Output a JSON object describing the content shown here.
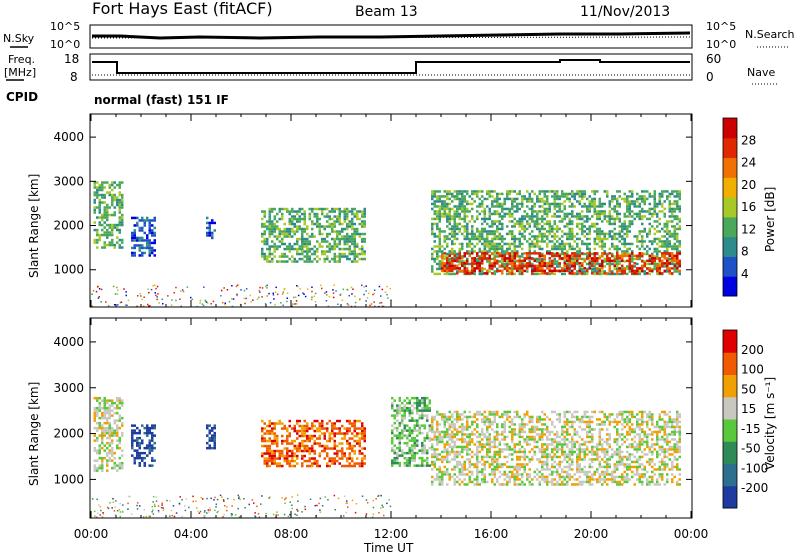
{
  "header": {
    "title": "Fort Hays East (fitACF)",
    "beam": "Beam 13",
    "date": "11/Nov/2013"
  },
  "noise_panel": {
    "left_label": "N.Sky",
    "right_label": "N.Search",
    "left_ticks": [
      "10^5",
      "10^0"
    ],
    "right_ticks": [
      "10^5",
      "10^0"
    ]
  },
  "freq_panel": {
    "left_label_1": "Freq.",
    "left_label_2": "[MHz]",
    "right_label": "Nave",
    "left_ticks": [
      "18",
      "8"
    ],
    "right_ticks": [
      "60",
      "0"
    ]
  },
  "cpid": {
    "label": "CPID",
    "value": "normal (fast) 151 IF"
  },
  "x_axis": {
    "label": "Time UT",
    "ticks": [
      "00:00",
      "04:00",
      "08:00",
      "12:00",
      "16:00",
      "20:00",
      "00:00"
    ]
  },
  "chart_data": [
    {
      "type": "heatmap",
      "name": "power",
      "ylabel": "Slant Range [km]",
      "yticks": [
        1000,
        2000,
        3000,
        4000
      ],
      "ylim": [
        180,
        4500
      ],
      "xlim_hours": [
        0,
        24
      ],
      "colorbar_label": "Power [dB]",
      "colorbar_ticks": [
        "28",
        "24",
        "20",
        "16",
        "12",
        "8",
        "4"
      ],
      "colors": [
        "#0000e0",
        "#1e50c8",
        "#2e8b8b",
        "#4aa85a",
        "#a8c828",
        "#f0b000",
        "#f07000",
        "#e02800",
        "#cc0000"
      ],
      "regions": [
        {
          "t0": 0.1,
          "t1": 1.3,
          "r0": 1500,
          "r1": 3000,
          "level": 3
        },
        {
          "t0": 1.6,
          "t1": 2.6,
          "r0": 1300,
          "r1": 2200,
          "level": 1
        },
        {
          "t0": 4.6,
          "t1": 5.0,
          "r0": 1700,
          "r1": 2200,
          "level": 1
        },
        {
          "t0": 6.8,
          "t1": 11.0,
          "r0": 1200,
          "r1": 2400,
          "level": 3
        },
        {
          "t0": 13.6,
          "t1": 23.6,
          "r0": 900,
          "r1": 2800,
          "level": 3
        },
        {
          "t0": 14.0,
          "t1": 23.6,
          "r0": 900,
          "r1": 1400,
          "level": 7
        }
      ]
    },
    {
      "type": "heatmap",
      "name": "velocity",
      "ylabel": "Slant Range [km]",
      "yticks": [
        1000,
        2000,
        3000,
        4000
      ],
      "ylim": [
        180,
        4500
      ],
      "xlim_hours": [
        0,
        24
      ],
      "colorbar_label": "Velocity [m s⁻¹]",
      "colorbar_ticks": [
        "200",
        "100",
        "50",
        "15",
        "-15",
        "-50",
        "-100",
        "-200"
      ],
      "colors": [
        "#1e3ca0",
        "#2e6e8e",
        "#2e8b57",
        "#5ac83c",
        "#c8c8c0",
        "#f0a000",
        "#f05a00",
        "#e00000"
      ],
      "regions": [
        {
          "t0": 0.1,
          "t1": 1.3,
          "r0": 1200,
          "r1": 2800,
          "level": 4
        },
        {
          "t0": 1.6,
          "t1": 2.6,
          "r0": 1300,
          "r1": 2200,
          "level": 0
        },
        {
          "t0": 4.6,
          "t1": 5.0,
          "r0": 1700,
          "r1": 2200,
          "level": 0
        },
        {
          "t0": 6.8,
          "t1": 11.0,
          "r0": 1300,
          "r1": 2300,
          "level": 6
        },
        {
          "t0": 12.0,
          "t1": 13.6,
          "r0": 1300,
          "r1": 2800,
          "level": 3
        },
        {
          "t0": 13.6,
          "t1": 23.6,
          "r0": 900,
          "r1": 2500,
          "level": 4
        }
      ]
    }
  ]
}
